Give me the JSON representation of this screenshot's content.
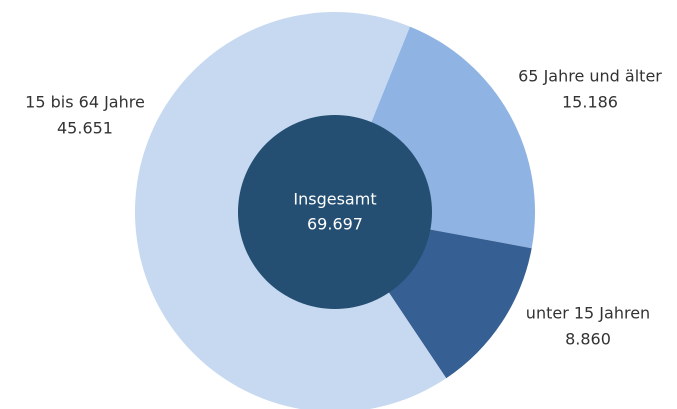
{
  "chart_data": {
    "type": "donut",
    "categories": [
      "65 Jahre und älter",
      "unter 15 Jahren",
      "15 bis 64 Jahre"
    ],
    "values": [
      15186,
      8860,
      45651
    ],
    "value_labels": [
      "15.186",
      "8.860",
      "45.651"
    ],
    "colors": [
      "#8fb3e3",
      "#365f94",
      "#c6d9f1"
    ],
    "center_label": "Insgesamt",
    "total": 69697,
    "total_label": "69.697",
    "center_color": "#244f72"
  }
}
